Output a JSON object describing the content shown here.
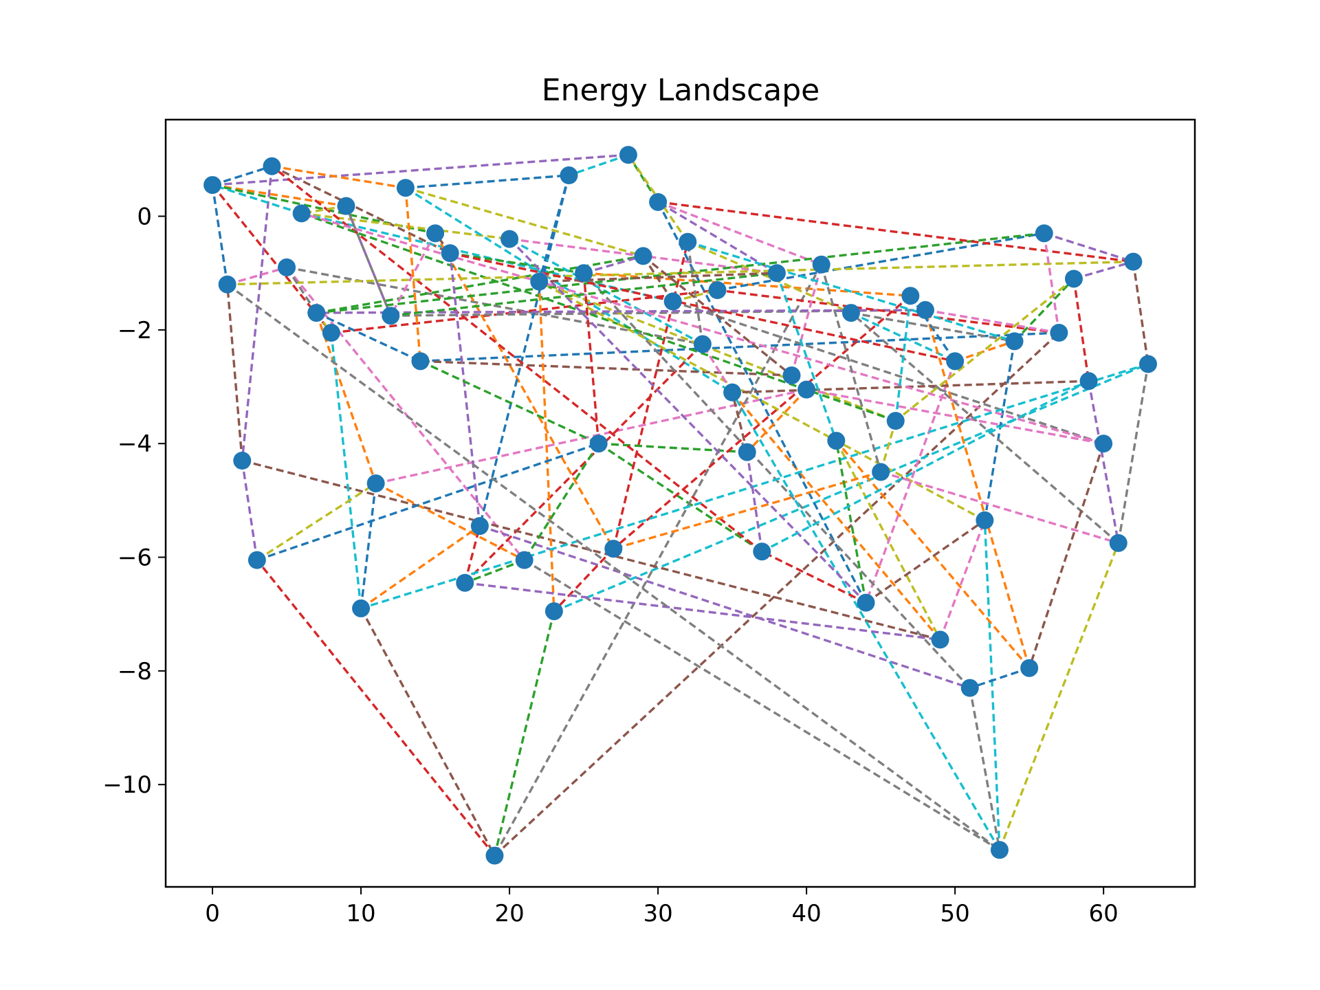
{
  "chart_data": {
    "type": "line",
    "title": "Energy Landscape",
    "xlabel": "",
    "ylabel": "",
    "xlim": [
      -3.15,
      66.15
    ],
    "ylim": [
      -11.8,
      1.7
    ],
    "xticks": [
      0,
      10,
      20,
      30,
      40,
      50,
      60
    ],
    "yticks": [
      0,
      -2,
      -4,
      -6,
      -8,
      -10
    ],
    "grid": false,
    "legend": "none",
    "marker_color": "#1f77b4",
    "palette": [
      "#1f77b4",
      "#ff7f0e",
      "#2ca02c",
      "#d62728",
      "#9467bd",
      "#8c564b",
      "#e377c2",
      "#7f7f7f",
      "#bcbd22",
      "#17becf"
    ],
    "nodes": [
      {
        "x": 0,
        "y": 0.55
      },
      {
        "x": 1,
        "y": -1.2
      },
      {
        "x": 2,
        "y": -4.3
      },
      {
        "x": 3,
        "y": -6.05
      },
      {
        "x": 4,
        "y": 0.88
      },
      {
        "x": 5,
        "y": -0.9
      },
      {
        "x": 6,
        "y": 0.05
      },
      {
        "x": 7,
        "y": -1.7
      },
      {
        "x": 8,
        "y": -2.05
      },
      {
        "x": 9,
        "y": 0.18
      },
      {
        "x": 10,
        "y": -6.9
      },
      {
        "x": 11,
        "y": -4.7
      },
      {
        "x": 12,
        "y": -1.75
      },
      {
        "x": 13,
        "y": 0.5
      },
      {
        "x": 14,
        "y": -2.55
      },
      {
        "x": 15,
        "y": -0.3
      },
      {
        "x": 16,
        "y": -0.65
      },
      {
        "x": 17,
        "y": -6.45
      },
      {
        "x": 18,
        "y": -5.45
      },
      {
        "x": 19,
        "y": -11.25
      },
      {
        "x": 20,
        "y": -0.4
      },
      {
        "x": 21,
        "y": -6.05
      },
      {
        "x": 22,
        "y": -1.15
      },
      {
        "x": 23,
        "y": -6.95
      },
      {
        "x": 24,
        "y": 0.72
      },
      {
        "x": 25,
        "y": -1.0
      },
      {
        "x": 26,
        "y": -4.0
      },
      {
        "x": 27,
        "y": -5.85
      },
      {
        "x": 28,
        "y": 1.08
      },
      {
        "x": 29,
        "y": -0.7
      },
      {
        "x": 30,
        "y": 0.25
      },
      {
        "x": 31,
        "y": -1.5
      },
      {
        "x": 32,
        "y": -0.45
      },
      {
        "x": 33,
        "y": -2.25
      },
      {
        "x": 34,
        "y": -1.3
      },
      {
        "x": 35,
        "y": -3.1
      },
      {
        "x": 36,
        "y": -4.15
      },
      {
        "x": 37,
        "y": -5.9
      },
      {
        "x": 38,
        "y": -1.0
      },
      {
        "x": 39,
        "y": -2.8
      },
      {
        "x": 40,
        "y": -3.05
      },
      {
        "x": 41,
        "y": -0.85
      },
      {
        "x": 42,
        "y": -3.95
      },
      {
        "x": 43,
        "y": -1.7
      },
      {
        "x": 44,
        "y": -6.8
      },
      {
        "x": 45,
        "y": -4.5
      },
      {
        "x": 46,
        "y": -3.6
      },
      {
        "x": 47,
        "y": -1.4
      },
      {
        "x": 48,
        "y": -1.65
      },
      {
        "x": 49,
        "y": -7.45
      },
      {
        "x": 50,
        "y": -2.55
      },
      {
        "x": 51,
        "y": -8.3
      },
      {
        "x": 52,
        "y": -5.35
      },
      {
        "x": 53,
        "y": -11.15
      },
      {
        "x": 54,
        "y": -2.2
      },
      {
        "x": 55,
        "y": -7.95
      },
      {
        "x": 56,
        "y": -0.3
      },
      {
        "x": 57,
        "y": -2.05
      },
      {
        "x": 58,
        "y": -1.1
      },
      {
        "x": 59,
        "y": -2.9
      },
      {
        "x": 60,
        "y": -4.0
      },
      {
        "x": 61,
        "y": -5.75
      },
      {
        "x": 62,
        "y": -0.8
      },
      {
        "x": 63,
        "y": -2.6
      }
    ],
    "edges": [
      [
        0,
        1
      ],
      [
        0,
        9
      ],
      [
        0,
        15
      ],
      [
        0,
        8
      ],
      [
        4,
        2
      ],
      [
        4,
        16
      ],
      [
        5,
        21
      ],
      [
        5,
        33
      ],
      [
        6,
        20
      ],
      [
        6,
        31
      ],
      [
        7,
        14
      ],
      [
        7,
        11
      ],
      [
        7,
        29
      ],
      [
        8,
        34
      ],
      [
        9,
        12
      ],
      [
        10,
        19
      ],
      [
        11,
        40
      ],
      [
        12,
        48
      ],
      [
        13,
        29
      ],
      [
        13,
        35
      ],
      [
        14,
        57
      ],
      [
        15,
        27
      ],
      [
        16,
        25
      ],
      [
        17,
        33
      ],
      [
        18,
        51
      ],
      [
        19,
        57
      ],
      [
        20,
        38
      ],
      [
        21,
        53
      ],
      [
        22,
        46
      ],
      [
        23,
        63
      ],
      [
        24,
        18
      ],
      [
        25,
        47
      ],
      [
        26,
        37
      ],
      [
        27,
        32
      ],
      [
        28,
        0
      ],
      [
        29,
        31
      ],
      [
        30,
        41
      ],
      [
        31,
        60
      ],
      [
        32,
        43
      ],
      [
        33,
        20
      ],
      [
        34,
        56
      ],
      [
        35,
        49
      ],
      [
        36,
        26
      ],
      [
        37,
        4
      ],
      [
        38,
        30
      ],
      [
        39,
        14
      ],
      [
        40,
        60
      ],
      [
        41,
        19
      ],
      [
        42,
        49
      ],
      [
        43,
        50
      ],
      [
        44,
        30
      ],
      [
        45,
        27
      ],
      [
        46,
        6
      ],
      [
        47,
        27
      ],
      [
        48,
        7
      ],
      [
        49,
        2
      ],
      [
        50,
        44
      ],
      [
        51,
        25
      ],
      [
        52,
        22
      ],
      [
        53,
        35
      ],
      [
        54,
        52
      ],
      [
        55,
        48
      ],
      [
        56,
        7
      ],
      [
        57,
        34
      ],
      [
        58,
        62
      ],
      [
        59,
        35
      ],
      [
        60,
        6
      ],
      [
        61,
        43
      ],
      [
        62,
        1
      ],
      [
        63,
        10
      ],
      [
        0,
        4
      ],
      [
        4,
        13
      ],
      [
        28,
        30
      ],
      [
        30,
        62
      ],
      [
        56,
        62
      ],
      [
        62,
        63
      ],
      [
        56,
        57
      ],
      [
        61,
        63
      ],
      [
        53,
        61
      ],
      [
        53,
        52
      ],
      [
        55,
        51
      ],
      [
        55,
        42
      ],
      [
        44,
        42
      ],
      [
        44,
        37
      ],
      [
        37,
        36
      ],
      [
        36,
        35
      ],
      [
        35,
        33
      ],
      [
        33,
        32
      ],
      [
        32,
        28
      ],
      [
        28,
        24
      ],
      [
        24,
        22
      ],
      [
        22,
        23
      ],
      [
        23,
        19
      ],
      [
        19,
        3
      ],
      [
        3,
        2
      ],
      [
        2,
        1
      ],
      [
        1,
        5
      ],
      [
        5,
        7
      ],
      [
        7,
        8
      ],
      [
        8,
        10
      ],
      [
        10,
        11
      ],
      [
        11,
        21
      ],
      [
        21,
        17
      ],
      [
        17,
        18
      ],
      [
        18,
        16
      ],
      [
        16,
        15
      ],
      [
        15,
        12
      ],
      [
        12,
        9
      ],
      [
        9,
        6
      ],
      [
        6,
        0
      ],
      [
        13,
        24
      ],
      [
        13,
        14
      ],
      [
        14,
        26
      ],
      [
        26,
        25
      ],
      [
        25,
        29
      ],
      [
        29,
        39
      ],
      [
        39,
        41
      ],
      [
        41,
        45
      ],
      [
        45,
        46
      ],
      [
        46,
        47
      ],
      [
        47,
        50
      ],
      [
        50,
        54
      ],
      [
        54,
        58
      ],
      [
        58,
        59
      ],
      [
        59,
        61
      ],
      [
        60,
        55
      ],
      [
        49,
        52
      ],
      [
        51,
        53
      ],
      [
        3,
        11
      ],
      [
        38,
        42
      ],
      [
        39,
        40
      ],
      [
        40,
        36
      ],
      [
        26,
        21
      ],
      [
        27,
        23
      ],
      [
        17,
        49
      ],
      [
        44,
        52
      ],
      [
        48,
        57
      ],
      [
        43,
        54
      ],
      [
        31,
        34
      ],
      [
        32,
        54
      ],
      [
        3,
        26
      ],
      [
        10,
        18
      ],
      [
        12,
        38
      ],
      [
        16,
        50
      ],
      [
        20,
        44
      ],
      [
        22,
        38
      ],
      [
        45,
        61
      ],
      [
        1,
        53
      ],
      [
        58,
        46
      ],
      [
        59,
        37
      ]
    ]
  }
}
